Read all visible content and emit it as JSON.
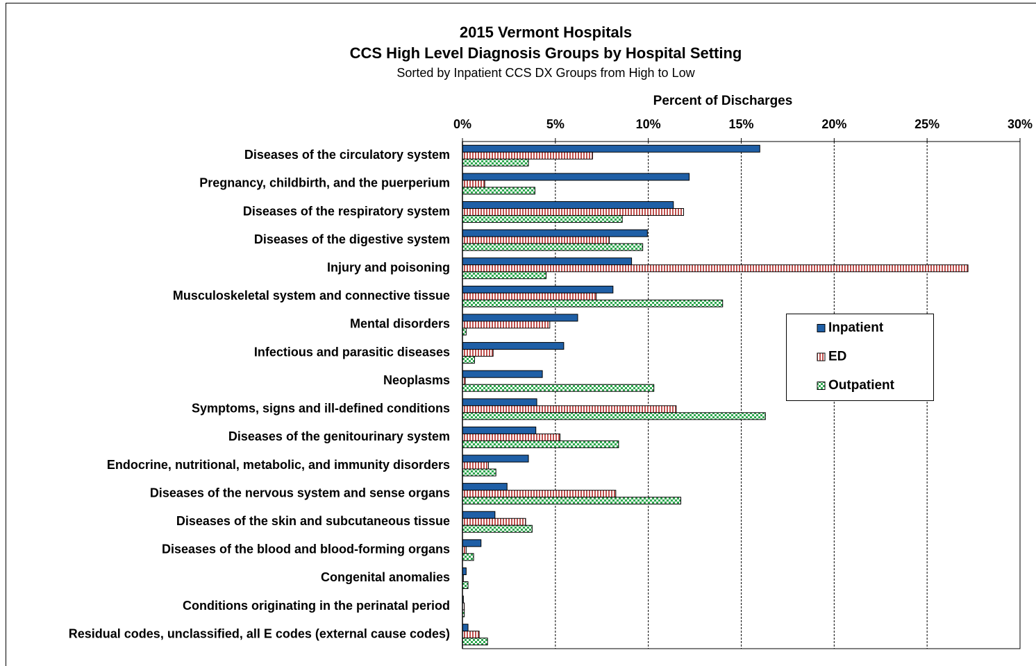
{
  "chart_data": {
    "type": "hbar",
    "title": "2015 Vermont Hospitals",
    "subtitle": "CCS High Level Diagnosis Groups by Hospital Setting",
    "subtitle2": "Sorted by Inpatient CCS DX Groups from High to Low",
    "x_label": "Percent of Discharges",
    "categories": [
      "Diseases of the circulatory system",
      "Pregnancy, childbirth, and the puerperium",
      "Diseases of the respiratory system",
      "Diseases of the digestive system",
      "Injury and poisoning",
      "Musculoskeletal system and connective tissue",
      "Mental disorders",
      "Infectious and parasitic diseases",
      "Neoplasms",
      "Symptoms, signs and ill-defined conditions",
      "Diseases of the genitourinary system",
      "Endocrine, nutritional, metabolic, and immunity disorders",
      "Diseases of the nervous system and sense organs",
      "Diseases of the skin and subcutaneous tissue",
      "Diseases of the blood and blood-forming organs",
      "Congenital anomalies",
      "Conditions originating in the perinatal period",
      "Residual codes, unclassified, all E codes (external cause codes)"
    ],
    "series": [
      {
        "name": "Inpatient",
        "color": "#1f5fa6",
        "pattern": "solid",
        "values": [
          16.0,
          12.2,
          11.35,
          9.95,
          9.1,
          8.1,
          6.2,
          5.45,
          4.3,
          4.0,
          3.95,
          3.55,
          2.4,
          1.75,
          1.0,
          0.2,
          0.05,
          0.3
        ]
      },
      {
        "name": "ED",
        "color": "#c0504d",
        "pattern": "vstripes",
        "values": [
          7.0,
          1.2,
          11.9,
          7.9,
          27.2,
          7.2,
          4.7,
          1.65,
          0.15,
          11.5,
          5.25,
          1.4,
          8.25,
          3.4,
          0.2,
          0.05,
          0.1,
          0.9
        ]
      },
      {
        "name": "Outpatient",
        "color": "#2ea84f",
        "pattern": "checker",
        "values": [
          3.55,
          3.9,
          8.6,
          9.7,
          4.5,
          14.0,
          0.2,
          0.65,
          10.3,
          16.3,
          8.4,
          1.8,
          11.75,
          3.75,
          0.6,
          0.3,
          0.1,
          1.35
        ]
      }
    ],
    "xlim": [
      0,
      30
    ],
    "xticks": [
      {
        "value": 0,
        "label": "0%"
      },
      {
        "value": 5,
        "label": "5%"
      },
      {
        "value": 10,
        "label": "10%"
      },
      {
        "value": 15,
        "label": "15%"
      },
      {
        "value": 20,
        "label": "20%"
      },
      {
        "value": 25,
        "label": "25%"
      },
      {
        "value": 30,
        "label": "30%"
      }
    ],
    "grid": true,
    "legend": "right"
  }
}
